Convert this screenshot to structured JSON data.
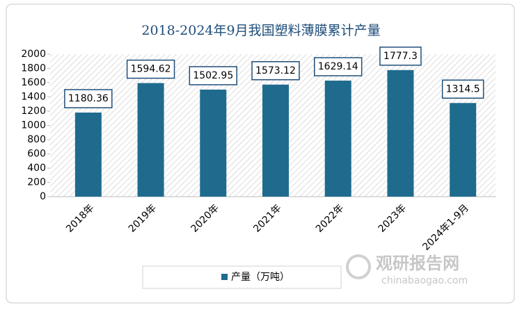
{
  "chart_data": {
    "type": "bar",
    "title": "2018-2024年9月我国塑料薄膜累计产量",
    "categories": [
      "2018年",
      "2019年",
      "2020年",
      "2021年",
      "2022年",
      "2023年",
      "2024年1-9月"
    ],
    "series": [
      {
        "name": "产量（万吨）",
        "color": "#1f6b8e",
        "values": [
          1180.36,
          1594.62,
          1502.95,
          1573.12,
          1629.14,
          1777.3,
          1314.5
        ]
      }
    ],
    "ylim": [
      0,
      2000
    ],
    "yticks": [
      0,
      200,
      400,
      600,
      800,
      1000,
      1200,
      1400,
      1600,
      1800,
      2000
    ],
    "legend": "bottom",
    "watermark": {
      "name": "观研报告网",
      "url": "chinabaogao.com"
    }
  }
}
